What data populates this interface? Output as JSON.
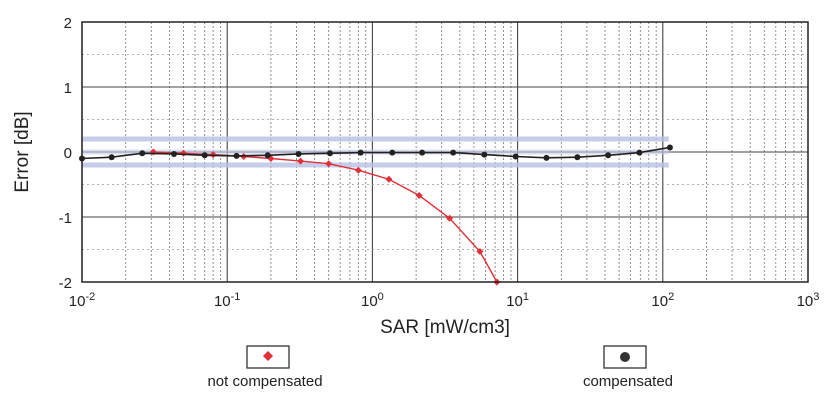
{
  "chart_data": {
    "type": "line",
    "title": "",
    "xlabel": "SAR [mW/cm3]",
    "ylabel": "Error [dB]",
    "xscale": "log",
    "xlim": [
      0.01,
      1000
    ],
    "ylim": [
      -2,
      2
    ],
    "grid": true,
    "x_ticks": [
      {
        "value": 0.01,
        "base": "10",
        "exp": "-2"
      },
      {
        "value": 0.1,
        "base": "10",
        "exp": "-1"
      },
      {
        "value": 1,
        "base": "10",
        "exp": "0"
      },
      {
        "value": 10,
        "base": "10",
        "exp": "1"
      },
      {
        "value": 100,
        "base": "10",
        "exp": "2"
      },
      {
        "value": 1000,
        "base": "10",
        "exp": "3"
      }
    ],
    "y_ticks": [
      "2",
      "1",
      "0",
      "-1",
      "-2"
    ],
    "y_tick_values": [
      2,
      1,
      0,
      -1,
      -2
    ],
    "tolerance_band": [
      -0.2,
      0.2
    ],
    "legend_position": "bottom",
    "series": [
      {
        "name": "not compensated",
        "color": "#e0303a",
        "marker": "diamond",
        "x": [
          0.031,
          0.05,
          0.08,
          0.13,
          0.2,
          0.32,
          0.5,
          0.8,
          1.3,
          2.1,
          3.4,
          5.5,
          7.2
        ],
        "y": [
          0.0,
          -0.02,
          -0.04,
          -0.07,
          -0.1,
          -0.14,
          -0.18,
          -0.28,
          -0.42,
          -0.67,
          -1.02,
          -1.53,
          -2.0
        ]
      },
      {
        "name": "compensated",
        "color": "#222222",
        "marker": "circle",
        "x": [
          0.01,
          0.016,
          0.026,
          0.043,
          0.07,
          0.116,
          0.19,
          0.31,
          0.51,
          0.83,
          1.37,
          2.2,
          3.6,
          5.9,
          9.7,
          15.8,
          25.8,
          42,
          69,
          112
        ],
        "y": [
          -0.1,
          -0.08,
          -0.02,
          -0.03,
          -0.05,
          -0.06,
          -0.05,
          -0.03,
          -0.02,
          -0.01,
          -0.01,
          -0.01,
          -0.01,
          -0.04,
          -0.07,
          -0.09,
          -0.08,
          -0.05,
          -0.01,
          0.07
        ]
      }
    ]
  }
}
